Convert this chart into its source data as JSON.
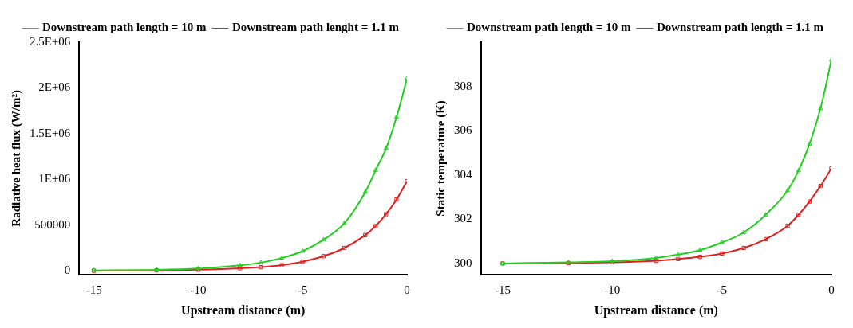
{
  "chart_data": [
    {
      "type": "line",
      "xlabel": "Upstream distance (m)",
      "ylabel": "Radiative heat flux (W/m²)",
      "xlim": [
        -15.7,
        0
      ],
      "xticks": [
        -15,
        -10,
        -5,
        0
      ],
      "ylim": [
        -40000,
        2500000
      ],
      "yticks": [
        {
          "value": 0,
          "label": "0"
        },
        {
          "value": 500000,
          "label": "500000"
        },
        {
          "value": 1000000,
          "label": "1E+06"
        },
        {
          "value": 1500000,
          "label": "1.5E+06"
        },
        {
          "value": 2000000,
          "label": "2E+06"
        },
        {
          "value": 2500000,
          "label": "2.5E+06"
        }
      ],
      "grid": false,
      "legend": "top",
      "line_style": "solid",
      "x": [
        -15,
        -12,
        -10,
        -8,
        -7,
        -6,
        -5,
        -4,
        -3,
        -2,
        -1.5,
        -1,
        -0.5,
        0
      ],
      "series": [
        {
          "name": "Downstream path length = 10 m",
          "color": "#1fd01f",
          "marker": "triangle",
          "values": [
            5000,
            10000,
            25000,
            60000,
            90000,
            140000,
            215000,
            340000,
            520000,
            860000,
            1100000,
            1340000,
            1680000,
            2100000
          ]
        },
        {
          "name": "Downstream path lenght = 1.1 m",
          "color": "#e01f1f",
          "marker": "square",
          "values": [
            2000,
            5000,
            12000,
            28000,
            40000,
            62000,
            100000,
            160000,
            250000,
            390000,
            490000,
            620000,
            780000,
            980000
          ]
        }
      ]
    },
    {
      "type": "line",
      "xlabel": "Upstream distance (m)",
      "ylabel": "Static temperature (K)",
      "xlim": [
        -16,
        0
      ],
      "xticks": [
        -15,
        -10,
        -5,
        0
      ],
      "ylim": [
        299.5,
        310
      ],
      "yticks": [
        300,
        302,
        304,
        306,
        308
      ],
      "grid": false,
      "legend": "top",
      "line_style": "solid",
      "x": [
        -15,
        -12,
        -10,
        -8,
        -7,
        -6,
        -5,
        -4,
        -3,
        -2,
        -1.5,
        -1,
        -0.5,
        0
      ],
      "series": [
        {
          "name": "Downstream path length = 10 m",
          "color": "#1fd01f",
          "marker": "triangle",
          "values": [
            300.0,
            300.05,
            300.1,
            300.25,
            300.4,
            300.6,
            300.95,
            301.4,
            302.2,
            303.3,
            304.2,
            305.4,
            307.0,
            309.2
          ]
        },
        {
          "name": "Downstream path length = 1.1 m",
          "color": "#e01f1f",
          "marker": "square",
          "values": [
            300.0,
            300.02,
            300.05,
            300.12,
            300.2,
            300.3,
            300.45,
            300.7,
            301.1,
            301.7,
            302.2,
            302.8,
            303.5,
            304.3
          ]
        }
      ]
    }
  ]
}
